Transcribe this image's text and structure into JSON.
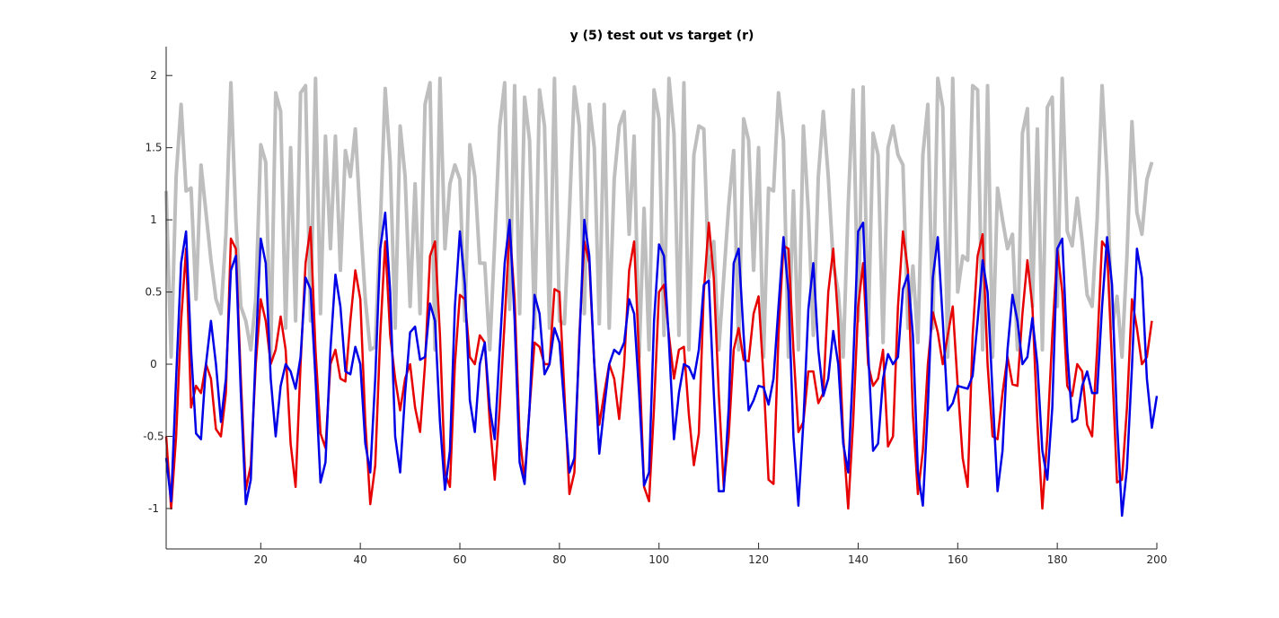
{
  "chart_data": {
    "type": "line",
    "title": "y (5) test out vs target (r)",
    "xlabel": "",
    "ylabel": "",
    "xlim": [
      1,
      200
    ],
    "ylim": [
      -1.28,
      2.2
    ],
    "x_ticks": [
      20,
      40,
      60,
      80,
      100,
      120,
      140,
      160,
      180,
      200
    ],
    "y_ticks": [
      -1,
      -0.5,
      0,
      0.5,
      1,
      1.5,
      2
    ],
    "grid": false,
    "legend": "none",
    "series": [
      {
        "color": "#bebebe",
        "x_start": 1,
        "values": [
          1.2,
          0.05,
          1.3,
          1.8,
          1.2,
          1.22,
          0.45,
          1.38,
          1.05,
          0.72,
          0.45,
          0.35,
          0.9,
          1.95,
          1.0,
          0.4,
          0.3,
          0.1,
          0.45,
          1.52,
          1.4,
          0.05,
          1.88,
          1.75,
          0.25,
          1.5,
          0.3,
          1.88,
          1.93,
          0.3,
          1.98,
          0.35,
          1.58,
          0.8,
          1.58,
          0.65,
          1.48,
          1.3,
          1.63,
          1.0,
          0.45,
          0.1,
          0.12,
          0.95,
          1.91,
          1.4,
          0.25,
          1.65,
          1.3,
          0.4,
          1.25,
          0.35,
          1.8,
          1.95,
          0.1,
          1.98,
          0.8,
          1.25,
          1.38,
          1.28,
          0.3,
          1.52,
          1.3,
          0.7,
          0.7,
          0.1,
          0.85,
          1.65,
          1.95,
          0.38,
          1.93,
          0.35,
          1.85,
          1.55,
          0.25,
          1.9,
          1.65,
          0.25,
          1.98,
          0.3,
          0.28,
          1.05,
          1.92,
          1.65,
          0.35,
          1.8,
          1.5,
          0.28,
          1.8,
          0.25,
          1.28,
          1.65,
          1.75,
          0.9,
          1.58,
          0.05,
          1.08,
          0.1,
          1.9,
          1.7,
          0.2,
          1.98,
          1.6,
          0.2,
          1.95,
          0.1,
          1.45,
          1.65,
          1.63,
          0.6,
          0.85,
          0.1,
          0.6,
          1.1,
          1.48,
          0.1,
          1.7,
          1.55,
          0.65,
          1.5,
          0.05,
          1.22,
          1.2,
          1.88,
          1.55,
          0.05,
          1.2,
          0.1,
          1.65,
          1.05,
          0.2,
          1.3,
          1.75,
          1.3,
          0.7,
          0.5,
          0.05,
          1.1,
          1.9,
          0.3,
          1.92,
          0.2,
          1.6,
          1.45,
          0.15,
          1.5,
          1.65,
          1.45,
          1.38,
          0.25,
          0.68,
          0.15,
          1.45,
          1.8,
          0.25,
          1.98,
          1.78,
          0.05,
          1.98,
          0.5,
          0.75,
          0.72,
          1.93,
          1.9,
          0.1,
          1.93,
          0.05,
          1.22,
          1.0,
          0.8,
          0.9,
          0.1,
          1.6,
          1.77,
          0.4,
          1.63,
          0.1,
          1.78,
          1.85,
          0.4,
          1.98,
          0.92,
          0.82,
          1.15,
          0.85,
          0.48,
          0.4,
          1.0,
          1.93,
          1.3,
          0.25,
          0.47,
          0.05,
          0.75,
          1.68,
          1.05,
          0.9,
          1.28,
          1.4
        ]
      },
      {
        "color": "#e60000",
        "x_start": 1,
        "values": [
          -0.5,
          -1.0,
          -0.5,
          0.3,
          0.8,
          -0.3,
          -0.15,
          -0.2,
          0.0,
          -0.1,
          -0.45,
          -0.5,
          -0.2,
          0.87,
          0.8,
          -0.1,
          -0.87,
          -0.7,
          0.0,
          0.45,
          0.3,
          0.0,
          0.1,
          0.33,
          0.1,
          -0.55,
          -0.85,
          0.0,
          0.7,
          0.95,
          0.1,
          -0.48,
          -0.58,
          0.0,
          0.1,
          -0.1,
          -0.12,
          0.3,
          0.65,
          0.45,
          -0.4,
          -0.97,
          -0.7,
          0.2,
          0.85,
          0.2,
          -0.1,
          -0.32,
          -0.1,
          0.0,
          -0.3,
          -0.47,
          0.0,
          0.75,
          0.85,
          0.2,
          -0.75,
          -0.85,
          0.0,
          0.48,
          0.45,
          0.05,
          0.0,
          0.2,
          0.15,
          -0.4,
          -0.8,
          -0.3,
          0.3,
          0.95,
          0.45,
          -0.5,
          -0.8,
          -0.3,
          0.15,
          0.12,
          0.0,
          0.0,
          0.52,
          0.5,
          -0.2,
          -0.9,
          -0.75,
          0.2,
          0.85,
          0.7,
          0.0,
          -0.42,
          -0.2,
          0.0,
          -0.1,
          -0.38,
          0.0,
          0.65,
          0.85,
          0.05,
          -0.85,
          -0.95,
          -0.3,
          0.5,
          0.55,
          0.2,
          -0.1,
          0.1,
          0.12,
          -0.35,
          -0.7,
          -0.48,
          0.5,
          0.98,
          0.6,
          -0.2,
          -0.85,
          -0.5,
          0.1,
          0.25,
          0.03,
          0.02,
          0.35,
          0.47,
          -0.1,
          -0.8,
          -0.83,
          0.2,
          0.82,
          0.8,
          0.1,
          -0.47,
          -0.4,
          -0.05,
          -0.05,
          -0.27,
          -0.2,
          0.5,
          0.8,
          0.3,
          -0.5,
          -1.0,
          -0.4,
          0.4,
          0.7,
          0.0,
          -0.15,
          -0.1,
          0.1,
          -0.57,
          -0.5,
          0.4,
          0.92,
          0.65,
          -0.35,
          -0.9,
          -0.6,
          0.0,
          0.36,
          0.22,
          0.0,
          0.2,
          0.4,
          -0.15,
          -0.65,
          -0.85,
          0.2,
          0.75,
          0.9,
          0.0,
          -0.5,
          -0.52,
          -0.2,
          0.05,
          -0.14,
          -0.15,
          0.35,
          0.72,
          0.4,
          -0.4,
          -1.0,
          -0.5,
          0.2,
          0.8,
          0.5,
          -0.15,
          -0.22,
          0.0,
          -0.05,
          -0.42,
          -0.5,
          0.1,
          0.85,
          0.8,
          0.0,
          -0.82,
          -0.8,
          -0.3,
          0.45,
          0.25,
          0.0,
          0.05,
          0.3
        ]
      },
      {
        "color": "#0000e6",
        "x_start": 1,
        "values": [
          -0.65,
          -0.95,
          -0.1,
          0.7,
          0.92,
          0.1,
          -0.48,
          -0.52,
          0.0,
          0.3,
          0.0,
          -0.4,
          -0.1,
          0.65,
          0.75,
          -0.2,
          -0.97,
          -0.8,
          0.1,
          0.87,
          0.7,
          -0.1,
          -0.5,
          -0.15,
          0.0,
          -0.05,
          -0.17,
          0.05,
          0.6,
          0.52,
          -0.1,
          -0.82,
          -0.68,
          0.1,
          0.62,
          0.4,
          -0.05,
          -0.07,
          0.12,
          0.0,
          -0.55,
          -0.75,
          -0.1,
          0.8,
          1.05,
          0.5,
          -0.5,
          -0.75,
          -0.2,
          0.22,
          0.26,
          0.03,
          0.05,
          0.42,
          0.3,
          -0.4,
          -0.87,
          -0.6,
          0.4,
          0.92,
          0.55,
          -0.25,
          -0.47,
          0.0,
          0.15,
          -0.3,
          -0.52,
          0.1,
          0.7,
          1.0,
          0.3,
          -0.68,
          -0.83,
          -0.3,
          0.48,
          0.35,
          -0.07,
          0.0,
          0.25,
          0.15,
          -0.3,
          -0.75,
          -0.65,
          0.15,
          1.0,
          0.75,
          0.0,
          -0.62,
          -0.3,
          0.0,
          0.1,
          0.07,
          0.15,
          0.45,
          0.35,
          -0.2,
          -0.84,
          -0.75,
          0.3,
          0.83,
          0.75,
          0.15,
          -0.52,
          -0.2,
          0.0,
          -0.02,
          -0.1,
          0.1,
          0.55,
          0.58,
          -0.2,
          -0.88,
          -0.88,
          -0.3,
          0.7,
          0.8,
          0.2,
          -0.32,
          -0.25,
          -0.15,
          -0.16,
          -0.28,
          -0.1,
          0.4,
          0.88,
          0.5,
          -0.5,
          -0.98,
          -0.4,
          0.38,
          0.7,
          0.1,
          -0.22,
          -0.1,
          0.23,
          0.0,
          -0.55,
          -0.75,
          0.0,
          0.92,
          0.98,
          0.1,
          -0.6,
          -0.55,
          -0.1,
          0.07,
          0.0,
          0.05,
          0.52,
          0.62,
          0.2,
          -0.75,
          -0.98,
          -0.3,
          0.6,
          0.88,
          0.3,
          -0.32,
          -0.27,
          -0.15,
          -0.16,
          -0.17,
          -0.08,
          0.3,
          0.72,
          0.5,
          -0.2,
          -0.88,
          -0.6,
          0.1,
          0.48,
          0.3,
          0.0,
          0.05,
          0.32,
          0.0,
          -0.6,
          -0.8,
          -0.3,
          0.8,
          0.87,
          0.1,
          -0.4,
          -0.38,
          -0.15,
          -0.05,
          -0.2,
          -0.2,
          0.4,
          0.88,
          0.55,
          -0.4,
          -1.05,
          -0.72,
          -0.02,
          0.8,
          0.6,
          -0.1,
          -0.44,
          -0.22
        ]
      }
    ]
  }
}
